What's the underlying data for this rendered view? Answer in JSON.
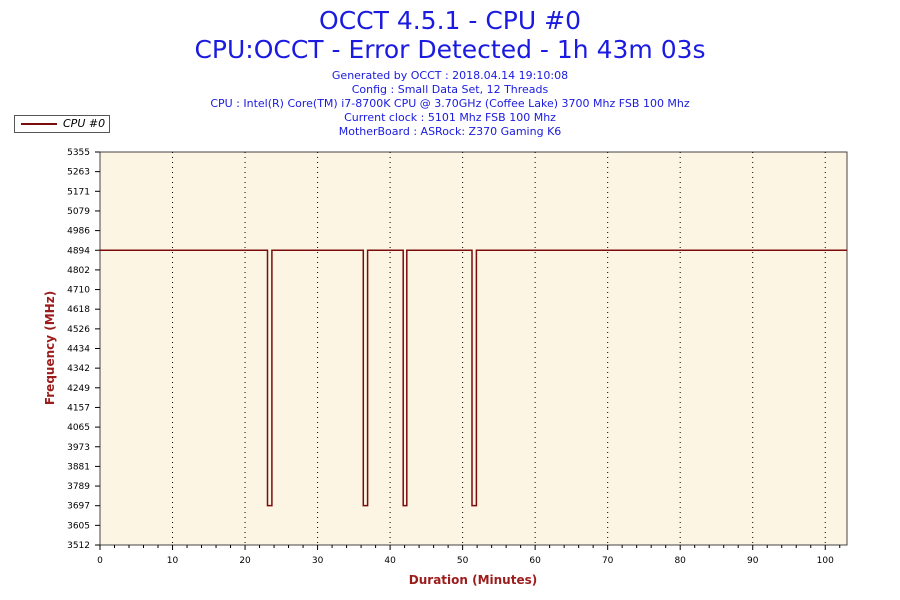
{
  "header": {
    "title": "OCCT 4.5.1 - CPU #0",
    "subtitle": "CPU:OCCT - Error Detected - 1h 43m 03s",
    "info_lines": [
      "Generated by OCCT : 2018.04.14 19:10:08",
      "Config : Small Data Set, 12 Threads",
      "CPU : Intel(R) Core(TM) i7-8700K CPU @ 3.70GHz (Coffee Lake) 3700 Mhz FSB 100 Mhz",
      "Current clock : 5101 Mhz FSB 100 Mhz",
      "MotherBoard : ASRock: Z370 Gaming K6"
    ]
  },
  "legend": {
    "label": "CPU #0"
  },
  "colors": {
    "series": "#7b0c0c",
    "plot_bg": "#fdf5e4",
    "title": "#1a1ae0",
    "axis_title": "#9c1c1c"
  },
  "chart_data": {
    "type": "line",
    "xlabel": "Duration (Minutes)",
    "ylabel": "Frequency (MHz)",
    "xlim": [
      0,
      103
    ],
    "ylim": [
      3512,
      5355
    ],
    "x_ticks": [
      "0",
      "10",
      "20",
      "30",
      "40",
      "50",
      "60",
      "70",
      "80",
      "90",
      "100"
    ],
    "y_ticks": [
      "5355",
      "5263",
      "5171",
      "5079",
      "4986",
      "4894",
      "4802",
      "4710",
      "4618",
      "4526",
      "4434",
      "4342",
      "4249",
      "4157",
      "4065",
      "3973",
      "3881",
      "3789",
      "3697",
      "3605",
      "3512"
    ],
    "grid": "dotted",
    "legend_position": "top-left",
    "series": [
      {
        "name": "CPU #0",
        "x": [
          0,
          23.1,
          23.1,
          23.7,
          23.7,
          36.3,
          36.3,
          36.9,
          36.9,
          41.8,
          41.8,
          42.3,
          42.3,
          51.3,
          51.3,
          51.9,
          51.9,
          103
        ],
        "y": [
          4894,
          4894,
          3697,
          3697,
          4894,
          4894,
          3697,
          3697,
          4894,
          4894,
          3697,
          3697,
          4894,
          4894,
          3697,
          3697,
          4894,
          4894
        ]
      }
    ]
  }
}
